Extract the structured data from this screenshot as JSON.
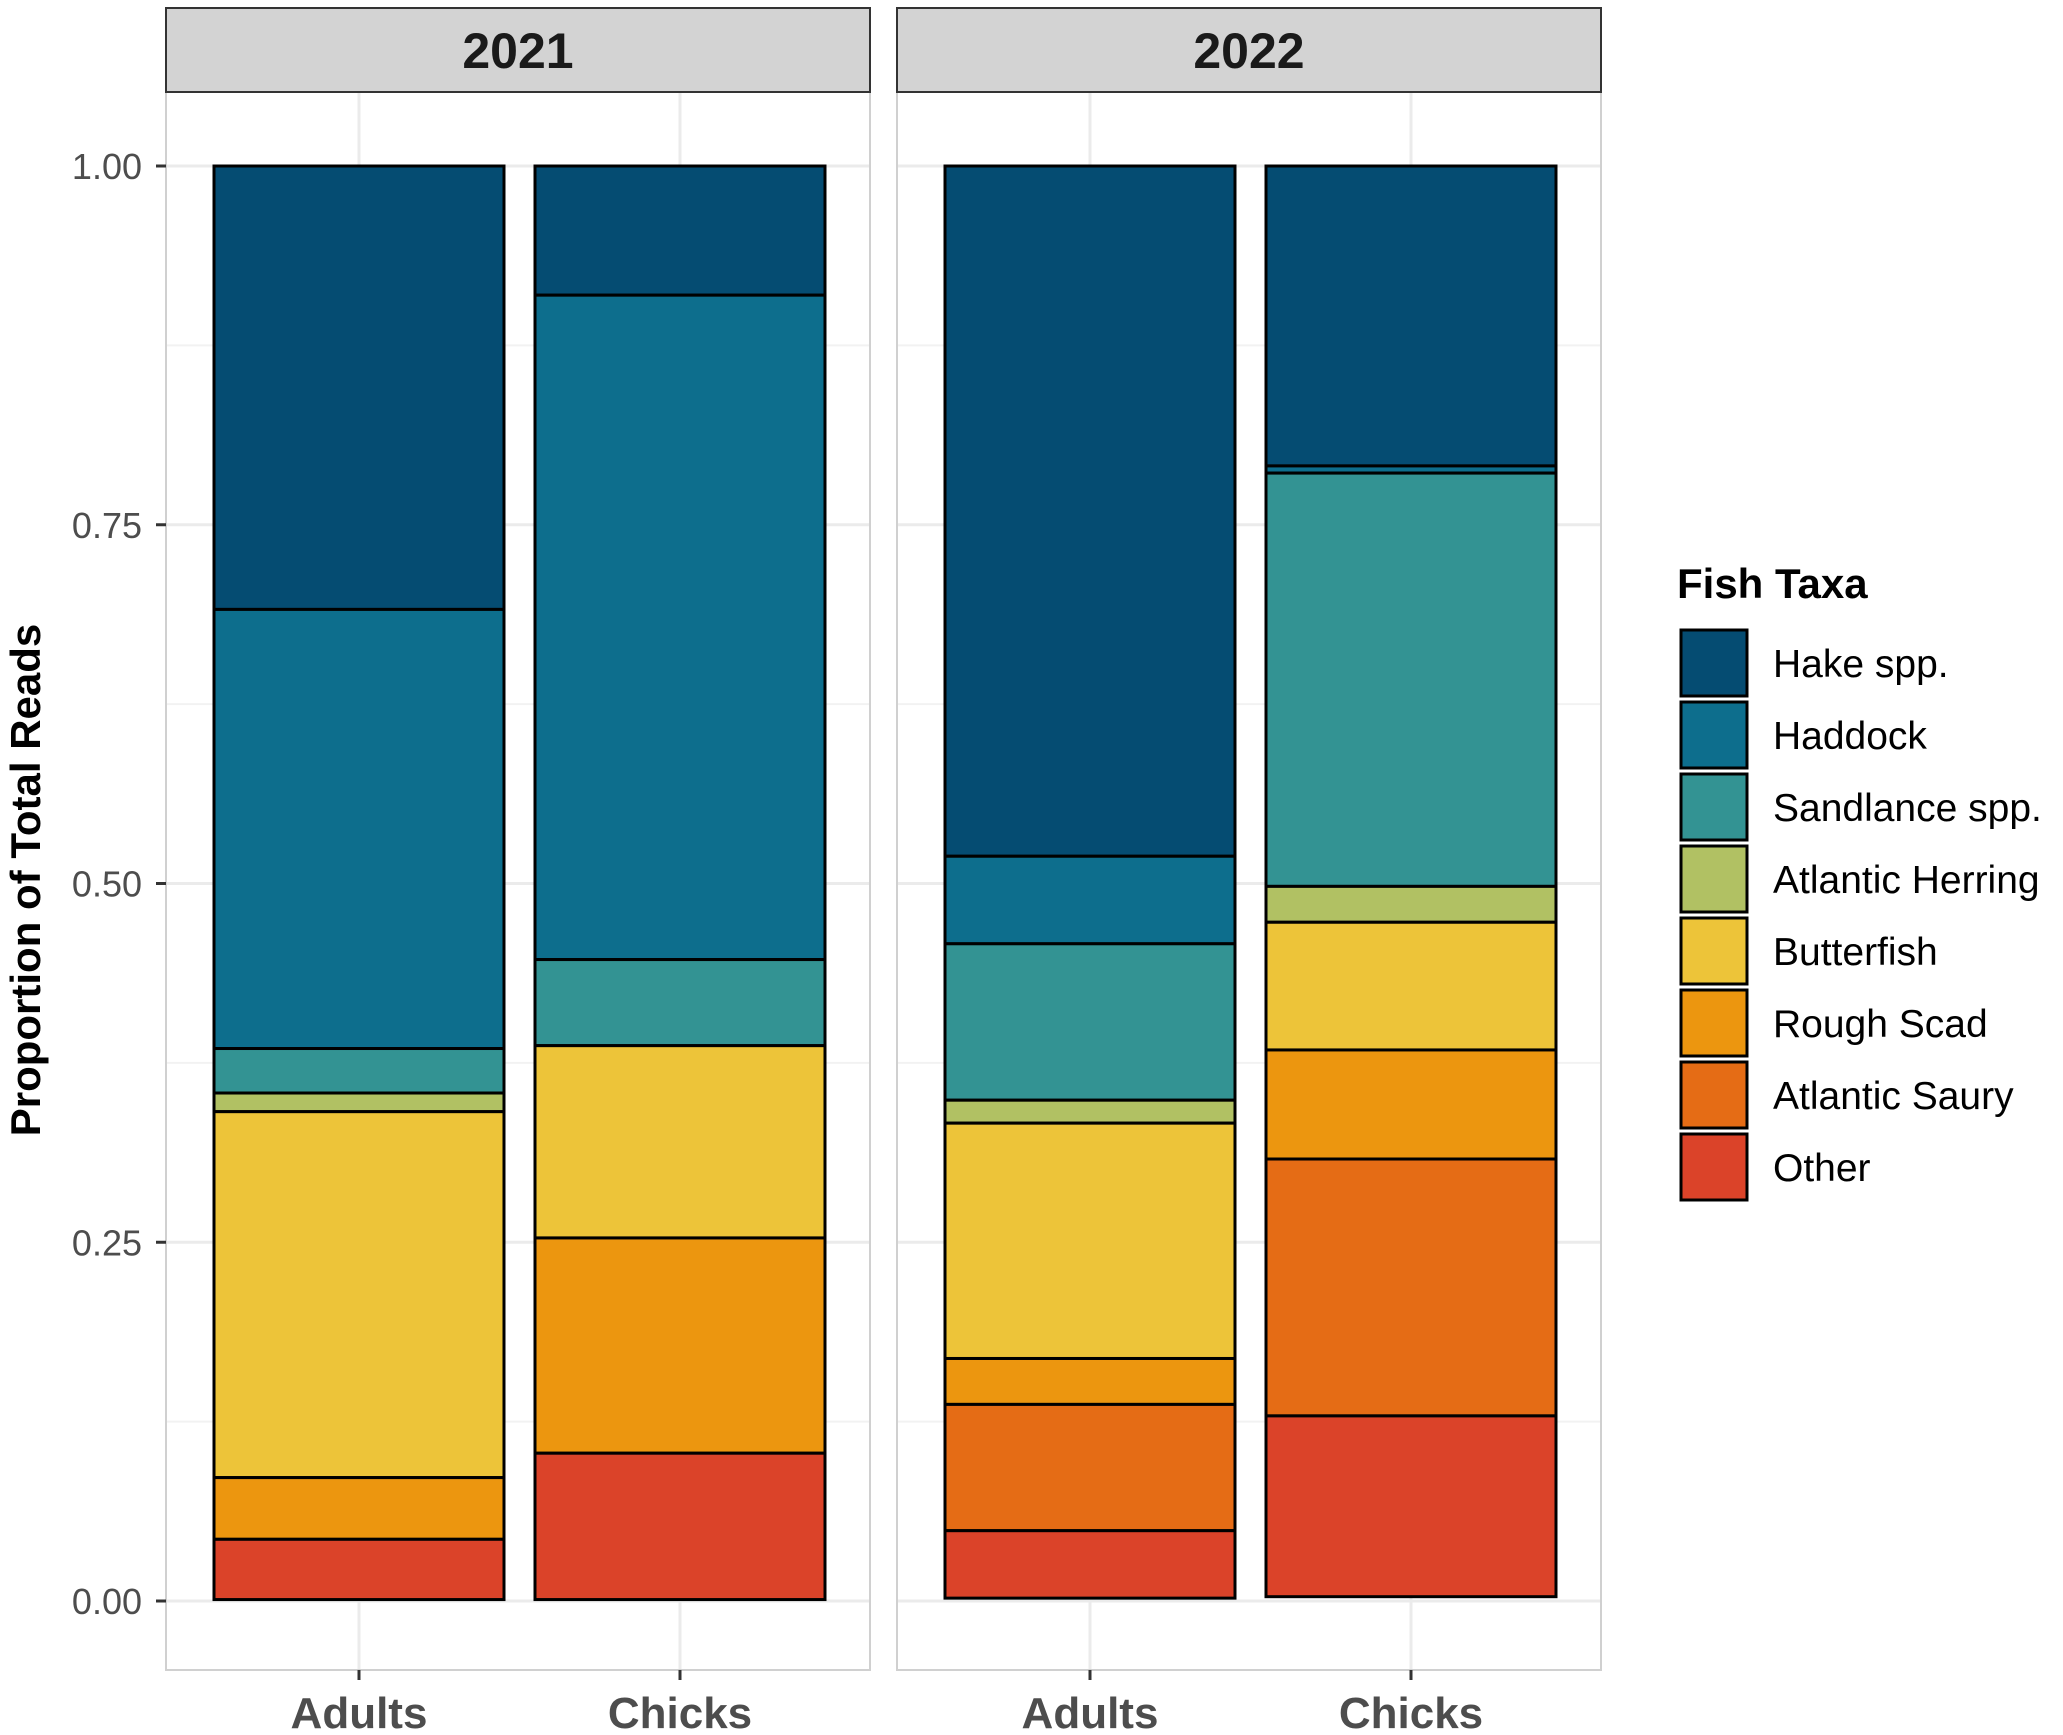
{
  "chart_data": {
    "type": "bar",
    "stacked": true,
    "facets": [
      "2021",
      "2022"
    ],
    "categories": [
      "Adults",
      "Chicks"
    ],
    "ylabel": "Proportion of Total Reads",
    "xlabel": "",
    "ylim": [
      0,
      1
    ],
    "yticks": [
      "0.00",
      "0.25",
      "0.50",
      "0.75",
      "1.00"
    ],
    "yticks_values": [
      0,
      0.25,
      0.5,
      0.75,
      1.0
    ],
    "legend_title": "Fish Taxa",
    "legend_position": "right",
    "series": [
      {
        "name": "Hake spp.",
        "color": "#054C72",
        "values": {
          "2021": [
            0.309,
            0.09
          ],
          "2022": [
            0.481,
            0.209
          ]
        }
      },
      {
        "name": "Haddock",
        "color": "#0D6E8D",
        "values": {
          "2021": [
            0.306,
            0.463
          ],
          "2022": [
            0.061,
            0.005
          ]
        }
      },
      {
        "name": "Sandlance spp.",
        "color": "#339393",
        "values": {
          "2021": [
            0.031,
            0.06
          ],
          "2022": [
            0.109,
            0.288
          ]
        }
      },
      {
        "name": "Atlantic Herring",
        "color": "#B1C163",
        "values": {
          "2021": [
            0.013,
            0.0
          ],
          "2022": [
            0.016,
            0.025
          ]
        }
      },
      {
        "name": "Butterfish",
        "color": "#EDC439",
        "values": {
          "2021": [
            0.255,
            0.134
          ],
          "2022": [
            0.164,
            0.089
          ]
        }
      },
      {
        "name": "Rough Scad",
        "color": "#EC960F",
        "values": {
          "2021": [
            0.043,
            0.15
          ],
          "2022": [
            0.032,
            0.076
          ]
        }
      },
      {
        "name": "Atlantic Saury",
        "color": "#E56C15",
        "values": {
          "2021": [
            0.0,
            0.0
          ],
          "2022": [
            0.088,
            0.179
          ]
        }
      },
      {
        "name": "Other",
        "color": "#DB4329",
        "values": {
          "2021": [
            0.042,
            0.102
          ],
          "2022": [
            0.047,
            0.126
          ]
        }
      }
    ]
  }
}
